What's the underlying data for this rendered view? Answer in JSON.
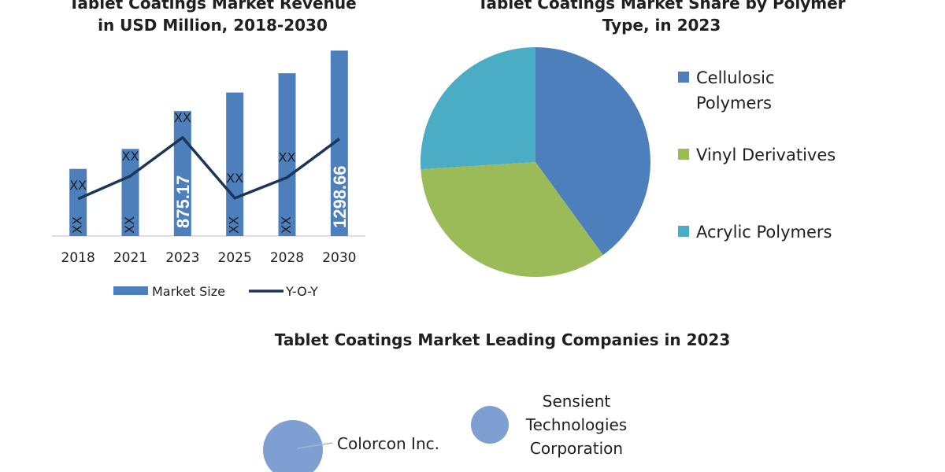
{
  "chart_data": [
    {
      "type": "bar",
      "title": "Tablet Coatings Market Revenue",
      "subtitle": "in USD Million, 2018-2030",
      "categories": [
        "2018",
        "2021",
        "2023",
        "2025",
        "2028",
        "2030"
      ],
      "series": [
        {
          "name": "Market Size",
          "type": "bar",
          "color": "#4e7fbd",
          "values": [
            470,
            610,
            875.17,
            1005,
            1140,
            1298.66
          ],
          "labels": [
            "XX",
            "XX",
            "875.17",
            "XX",
            "XX",
            "1298.66"
          ]
        },
        {
          "name": "Y-O-Y",
          "type": "line",
          "color": "#1d3557",
          "values": [
            260,
            420,
            690,
            265,
            410,
            680
          ],
          "labels": [
            "XX",
            "XX",
            "XX",
            "XX",
            "XX",
            ""
          ]
        }
      ],
      "xlabel": "",
      "ylabel": "",
      "ylim": [
        0,
        1350
      ],
      "grid": false,
      "legend": "bottom"
    },
    {
      "type": "pie",
      "title": "Tablet Coatings Market Share by Polymer",
      "subtitle": "Type, in 2023",
      "labels": [
        "Cellulosic Polymers",
        "Vinyl Derivatives",
        "Acrylic Polymers"
      ],
      "legend_lines": [
        [
          "Cellulosic",
          "Polymers"
        ],
        [
          "Vinyl Derivatives"
        ],
        [
          "Acrylic Polymers"
        ]
      ],
      "values": [
        40,
        34,
        26
      ],
      "colors": [
        "#4e7fbd",
        "#9bbb59",
        "#4bacc6"
      ],
      "legend": "right"
    },
    {
      "type": "scatter",
      "title": "Tablet Coatings Market Leading Companies in 2023",
      "labels": [
        "Colorcon Inc.",
        "Sensient Technologies Corporation"
      ],
      "label_lines": [
        [
          "Colorcon Inc."
        ],
        [
          "Sensient",
          "Technologies",
          "Corporation"
        ]
      ],
      "color": "#7f9fd3"
    }
  ]
}
